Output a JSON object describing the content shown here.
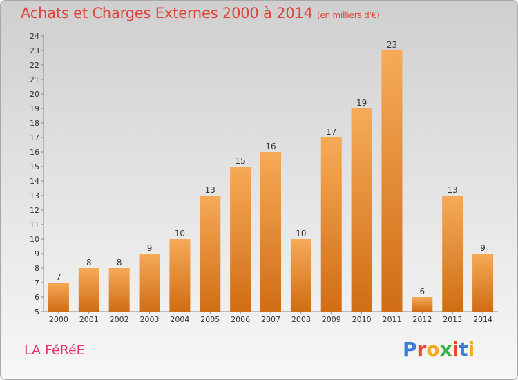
{
  "header": {
    "title": "Achats et Charges Externes 2000 à 2014",
    "subtitle": "(en milliers d'€)"
  },
  "footer": {
    "place": "LA FéRéE",
    "logo": "Proxiti",
    "logo_colors": [
      "#3a7fd5",
      "#e8462e",
      "#f5a623",
      "#3fb24a",
      "#e8462e",
      "#3a7fd5",
      "#f5a623"
    ]
  },
  "colors": {
    "bar_light": "#f6aa57",
    "bar_dark": "#d06d15",
    "title": "#e0433a",
    "place": "#e0336a"
  },
  "chart_data": {
    "type": "bar",
    "title": "Achats et Charges Externes 2000 à 2014",
    "subtitle": "(en milliers d'€)",
    "categories": [
      "2000",
      "2001",
      "2002",
      "2003",
      "2004",
      "2005",
      "2006",
      "2007",
      "2008",
      "2009",
      "2010",
      "2011",
      "2012",
      "2013",
      "2014"
    ],
    "values": [
      7,
      8,
      8,
      9,
      10,
      13,
      15,
      16,
      10,
      17,
      19,
      23,
      6,
      13,
      9
    ],
    "ylim": [
      5,
      24
    ],
    "yticks": [
      5,
      6,
      7,
      8,
      9,
      10,
      11,
      12,
      13,
      14,
      15,
      16,
      17,
      18,
      19,
      20,
      21,
      22,
      23,
      24
    ],
    "grid": false,
    "legend": "none"
  }
}
